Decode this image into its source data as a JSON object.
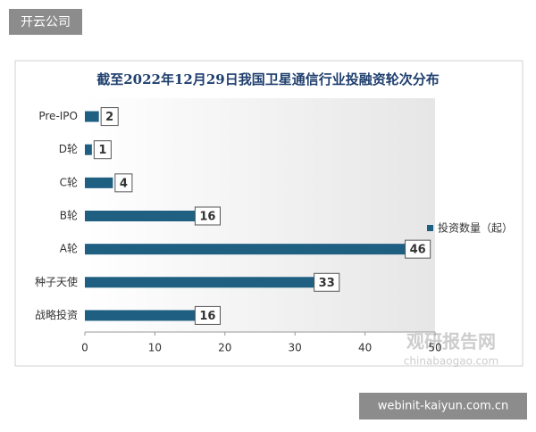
{
  "header_label": "开云公司",
  "footer_label": "webinit-kaiyun.com.cn",
  "watermark": {
    "name": "观研报告网",
    "url": "chinabaogao.com"
  },
  "chart_data": {
    "type": "hbar",
    "title": "截至2022年12月29日我国卫星通信行业投融资轮次分布",
    "categories": [
      "Pre-IPO",
      "D轮",
      "C轮",
      "B轮",
      "A轮",
      "种子天使",
      "战略投资"
    ],
    "series": [
      {
        "name": "投资数量（起）",
        "color": "#1f5f82",
        "values": [
          2,
          1,
          4,
          16,
          46,
          33,
          16
        ]
      }
    ],
    "xlim": [
      0,
      50
    ],
    "xticks": [
      0,
      10,
      20,
      30,
      40,
      50
    ],
    "grid": false,
    "legend": "right"
  }
}
